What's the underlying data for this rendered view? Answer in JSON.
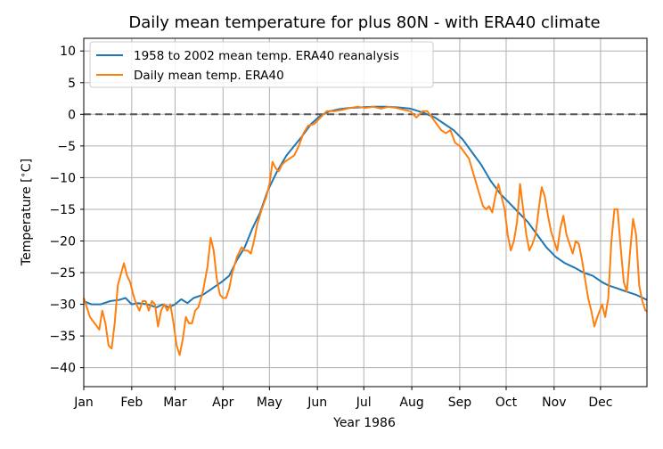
{
  "chart_data": {
    "type": "line",
    "title": "Daily mean temperature for plus 80N - with ERA40 climate",
    "xlabel": "Year 1986",
    "ylabel_main": "Temperature [",
    "ylabel_degree": "∘",
    "ylabel_unit": "C]",
    "ylim": [
      -43,
      12
    ],
    "xlim": [
      1,
      365
    ],
    "grid": true,
    "legend_position": "top-left",
    "reference_line": {
      "y": 0,
      "style": "dashed",
      "color": "#555555"
    },
    "yticks": [
      10,
      5,
      0,
      -5,
      -10,
      -15,
      -20,
      -25,
      -30,
      -35,
      -40
    ],
    "ytick_labels": [
      "10",
      "5",
      "0",
      "−5",
      "−10",
      "−15",
      "−20",
      "−25",
      "−30",
      "−35",
      "−40"
    ],
    "xticks": [
      1,
      32,
      60,
      91,
      121,
      152,
      182,
      213,
      244,
      274,
      305,
      335
    ],
    "xtick_labels": [
      "Jan",
      "Feb",
      "Mar",
      "Apr",
      "May",
      "Jun",
      "Jul",
      "Aug",
      "Sep",
      "Oct",
      "Nov",
      "Dec"
    ],
    "series": [
      {
        "name": "1958 to 2002 mean temp. ERA40 reanalysis",
        "color": "#1f77b4",
        "points": [
          [
            1,
            -29.5
          ],
          [
            6,
            -30
          ],
          [
            12,
            -30
          ],
          [
            18,
            -29.5
          ],
          [
            24,
            -29.3
          ],
          [
            28,
            -29
          ],
          [
            32,
            -30
          ],
          [
            36,
            -29.8
          ],
          [
            42,
            -30
          ],
          [
            48,
            -30.5
          ],
          [
            52,
            -30
          ],
          [
            56,
            -30.5
          ],
          [
            60,
            -30
          ],
          [
            64,
            -29.2
          ],
          [
            68,
            -29.8
          ],
          [
            72,
            -29
          ],
          [
            78,
            -28.5
          ],
          [
            84,
            -27.5
          ],
          [
            90,
            -26.5
          ],
          [
            95,
            -25.5
          ],
          [
            100,
            -23
          ],
          [
            105,
            -21
          ],
          [
            110,
            -18
          ],
          [
            115,
            -15.5
          ],
          [
            120,
            -12
          ],
          [
            126,
            -9
          ],
          [
            132,
            -6.5
          ],
          [
            137,
            -5
          ],
          [
            142,
            -3.5
          ],
          [
            148,
            -1.5
          ],
          [
            154,
            -0.2
          ],
          [
            160,
            0.5
          ],
          [
            166,
            0.8
          ],
          [
            172,
            1.0
          ],
          [
            180,
            1.1
          ],
          [
            188,
            1.2
          ],
          [
            196,
            1.2
          ],
          [
            204,
            1.1
          ],
          [
            212,
            0.9
          ],
          [
            220,
            0.3
          ],
          [
            228,
            -0.5
          ],
          [
            234,
            -1.5
          ],
          [
            240,
            -2.5
          ],
          [
            246,
            -4
          ],
          [
            252,
            -6
          ],
          [
            258,
            -8
          ],
          [
            264,
            -10.5
          ],
          [
            270,
            -12.5
          ],
          [
            276,
            -14
          ],
          [
            282,
            -15.5
          ],
          [
            288,
            -17
          ],
          [
            294,
            -19
          ],
          [
            300,
            -21
          ],
          [
            306,
            -22.5
          ],
          [
            312,
            -23.5
          ],
          [
            318,
            -24.2
          ],
          [
            324,
            -25
          ],
          [
            330,
            -25.5
          ],
          [
            336,
            -26.5
          ],
          [
            340,
            -27
          ],
          [
            346,
            -27.5
          ],
          [
            352,
            -28
          ],
          [
            358,
            -28.5
          ],
          [
            365,
            -29.3
          ]
        ]
      },
      {
        "name": "Daily mean temp. ERA40",
        "color": "#ff7f0e",
        "points": [
          [
            1,
            -29
          ],
          [
            3,
            -30.5
          ],
          [
            5,
            -32
          ],
          [
            8,
            -33
          ],
          [
            11,
            -34
          ],
          [
            13,
            -31
          ],
          [
            15,
            -33
          ],
          [
            17,
            -36.5
          ],
          [
            19,
            -37
          ],
          [
            21,
            -33
          ],
          [
            23,
            -27
          ],
          [
            27,
            -23.5
          ],
          [
            29,
            -25.5
          ],
          [
            31,
            -26.5
          ],
          [
            33,
            -28.5
          ],
          [
            35,
            -30
          ],
          [
            37,
            -31
          ],
          [
            39,
            -29.5
          ],
          [
            41,
            -29.5
          ],
          [
            43,
            -31
          ],
          [
            45,
            -29.5
          ],
          [
            47,
            -30
          ],
          [
            49,
            -33.5
          ],
          [
            51,
            -31
          ],
          [
            53,
            -30
          ],
          [
            55,
            -31
          ],
          [
            57,
            -30
          ],
          [
            59,
            -33
          ],
          [
            61,
            -36.5
          ],
          [
            63,
            -38
          ],
          [
            65,
            -35.5
          ],
          [
            67,
            -32
          ],
          [
            69,
            -33
          ],
          [
            71,
            -33
          ],
          [
            73,
            -31
          ],
          [
            75,
            -30.5
          ],
          [
            78,
            -28
          ],
          [
            81,
            -24
          ],
          [
            83,
            -19.5
          ],
          [
            85,
            -21.5
          ],
          [
            87,
            -26
          ],
          [
            89,
            -28.5
          ],
          [
            91,
            -29
          ],
          [
            93,
            -29
          ],
          [
            95,
            -27.5
          ],
          [
            97,
            -25
          ],
          [
            100,
            -22.5
          ],
          [
            103,
            -21
          ],
          [
            105,
            -21.5
          ],
          [
            107,
            -21.5
          ],
          [
            109,
            -22
          ],
          [
            111,
            -20
          ],
          [
            113,
            -17.5
          ],
          [
            116,
            -15
          ],
          [
            119,
            -13
          ],
          [
            121,
            -11
          ],
          [
            123,
            -7.5
          ],
          [
            125,
            -8.5
          ],
          [
            127,
            -9
          ],
          [
            129,
            -8
          ],
          [
            131,
            -7.5
          ],
          [
            134,
            -7
          ],
          [
            137,
            -6.5
          ],
          [
            140,
            -5
          ],
          [
            143,
            -3
          ],
          [
            146,
            -1.8
          ],
          [
            150,
            -1.5
          ],
          [
            154,
            -0.5
          ],
          [
            158,
            0.5
          ],
          [
            163,
            0.5
          ],
          [
            168,
            0.7
          ],
          [
            173,
            1.0
          ],
          [
            178,
            1.2
          ],
          [
            183,
            1.0
          ],
          [
            188,
            1.2
          ],
          [
            193,
            0.9
          ],
          [
            198,
            1.2
          ],
          [
            203,
            1.0
          ],
          [
            208,
            0.7
          ],
          [
            212,
            0.5
          ],
          [
            216,
            -0.5
          ],
          [
            220,
            0.5
          ],
          [
            223,
            0.5
          ],
          [
            226,
            -0.5
          ],
          [
            229,
            -1.5
          ],
          [
            232,
            -2.5
          ],
          [
            235,
            -3
          ],
          [
            238,
            -2.5
          ],
          [
            241,
            -4.5
          ],
          [
            244,
            -5
          ],
          [
            247,
            -6
          ],
          [
            250,
            -7
          ],
          [
            253,
            -9.5
          ],
          [
            256,
            -12
          ],
          [
            259,
            -14.5
          ],
          [
            261,
            -15
          ],
          [
            263,
            -14.5
          ],
          [
            265,
            -15.5
          ],
          [
            267,
            -13
          ],
          [
            269,
            -11
          ],
          [
            271,
            -13
          ],
          [
            273,
            -15
          ],
          [
            275,
            -19
          ],
          [
            277,
            -21.5
          ],
          [
            279,
            -20
          ],
          [
            281,
            -17
          ],
          [
            283,
            -11
          ],
          [
            285,
            -15
          ],
          [
            287,
            -19
          ],
          [
            289,
            -21.5
          ],
          [
            291,
            -20.5
          ],
          [
            293,
            -19
          ],
          [
            295,
            -15
          ],
          [
            297,
            -11.5
          ],
          [
            299,
            -13
          ],
          [
            301,
            -16
          ],
          [
            303,
            -18.5
          ],
          [
            305,
            -20
          ],
          [
            307,
            -21.5
          ],
          [
            309,
            -18
          ],
          [
            311,
            -16
          ],
          [
            313,
            -19
          ],
          [
            315,
            -20.5
          ],
          [
            317,
            -22
          ],
          [
            319,
            -20
          ],
          [
            321,
            -20.5
          ],
          [
            323,
            -23
          ],
          [
            325,
            -26
          ],
          [
            327,
            -29
          ],
          [
            329,
            -31
          ],
          [
            331,
            -33.5
          ],
          [
            333,
            -32
          ],
          [
            336,
            -30
          ],
          [
            338,
            -32
          ],
          [
            340,
            -29
          ],
          [
            342,
            -20
          ],
          [
            344,
            -15
          ],
          [
            346,
            -15
          ],
          [
            348,
            -21
          ],
          [
            350,
            -26.5
          ],
          [
            352,
            -28
          ],
          [
            354,
            -22
          ],
          [
            356,
            -16.5
          ],
          [
            358,
            -19
          ],
          [
            360,
            -27
          ],
          [
            362,
            -29.5
          ],
          [
            364,
            -31
          ],
          [
            365,
            -31
          ]
        ]
      }
    ]
  }
}
